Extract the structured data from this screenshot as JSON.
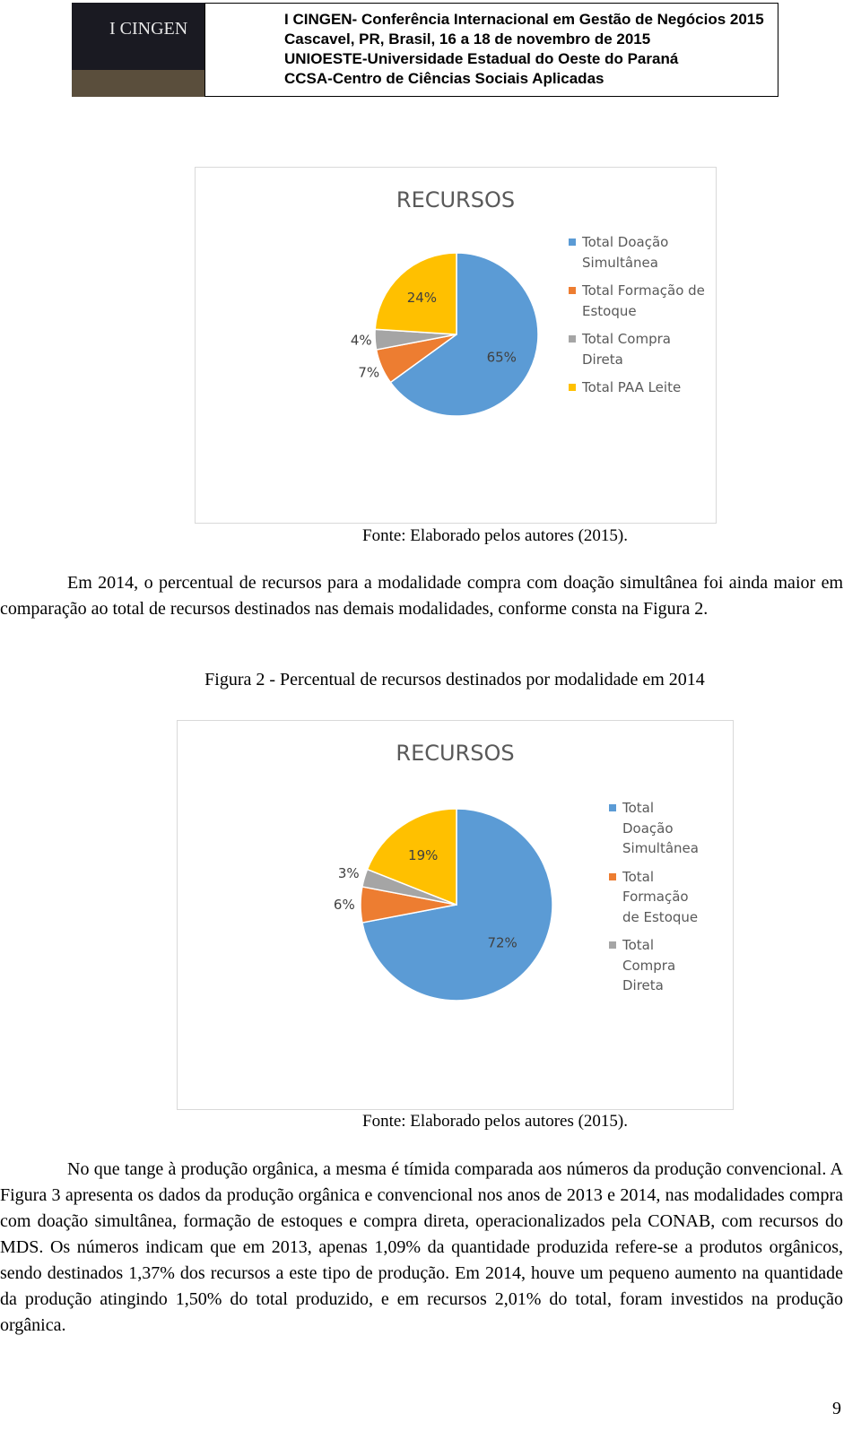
{
  "header": {
    "lines": [
      "I CINGEN- Conferência Internacional em Gestão de Negócios 2015",
      "Cascavel, PR, Brasil, 16 a 18 de novembro de 2015",
      "UNIOESTE-Universidade Estadual do Oeste do Paraná",
      "CCSA-Centro de Ciências Sociais Aplicadas"
    ],
    "logo": "I CINGEN"
  },
  "chart_data": [
    {
      "type": "pie",
      "title": "RECURSOS",
      "categories": [
        "Total Doação Simultânea",
        "Total Formação de Estoque",
        "Total Compra Direta",
        "Total PAA Leite"
      ],
      "values": [
        65,
        7,
        4,
        24
      ],
      "value_labels": [
        "65%",
        "7%",
        "4%",
        "24%"
      ],
      "colors": [
        "#5b9bd5",
        "#ed7d31",
        "#a5a5a5",
        "#ffc000"
      ],
      "source": "Fonte: Elaborado pelos autores (2015)."
    },
    {
      "type": "pie",
      "title": "RECURSOS",
      "categories": [
        "Total Doação Simultânea",
        "Total Formação de Estoque",
        "Total Compra Direta",
        null
      ],
      "values": [
        72,
        6,
        3,
        19
      ],
      "value_labels": [
        "72%",
        "6%",
        "3%",
        "19%"
      ],
      "colors": [
        "#5b9bd5",
        "#ed7d31",
        "#a5a5a5",
        "#ffc000"
      ],
      "source": "Fonte: Elaborado pelos autores (2015)."
    }
  ],
  "paragraphs": [
    "Em 2014, o percentual de recursos para a modalidade compra com doação simultânea foi ainda maior em comparação ao total de recursos destinados nas demais modalidades, conforme consta na Figura 2.",
    "No que tange à produção orgânica, a mesma é tímida comparada aos números da produção convencional. A Figura 3 apresenta os dados da produção orgânica e convencional nos anos de 2013 e 2014, nas modalidades compra com doação simultânea, formação de estoques e compra direta, operacionalizados pela CONAB, com recursos do MDS. Os números indicam que em 2013, apenas 1,09% da quantidade produzida refere-se a produtos orgânicos, sendo destinados 1,37% dos recursos a este tipo de produção. Em 2014, houve um pequeno aumento na quantidade da produção atingindo 1,50% do total produzido, e em recursos 2,01% do total, foram investidos na produção orgânica."
  ],
  "figure_caption": "Figura 2 - Percentual de recursos destinados por modalidade em 2014",
  "page_number": "9"
}
